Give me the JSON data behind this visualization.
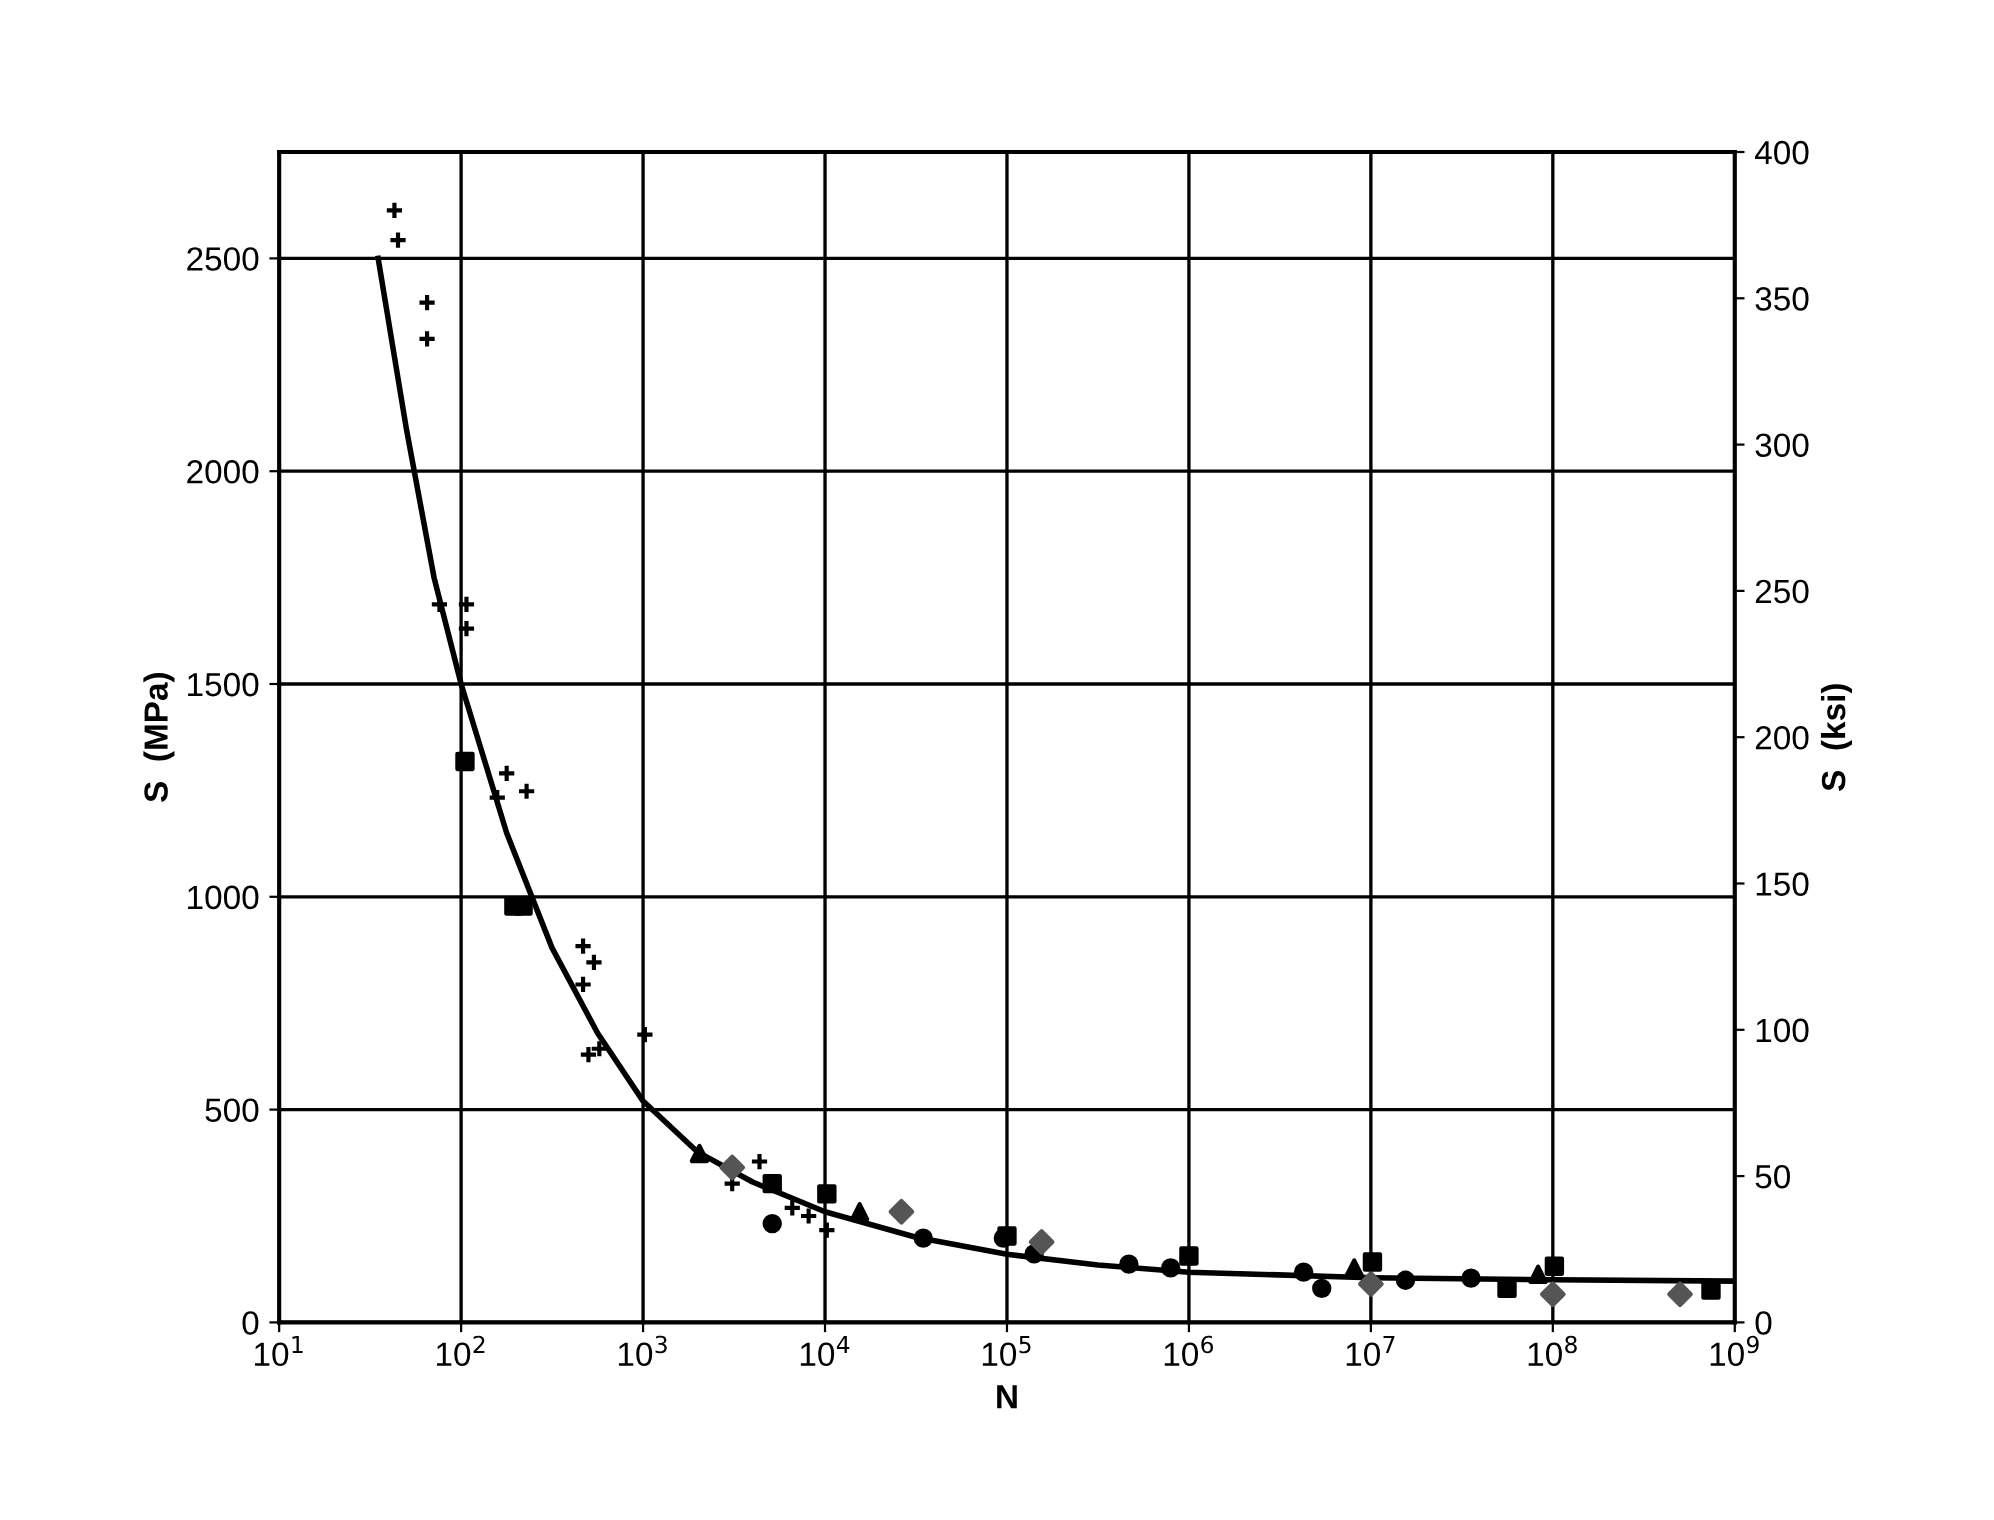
{
  "chart_data": {
    "type": "scatter",
    "xlabel": "N",
    "ylabel": "S  (MPa)",
    "y2label": "S  (ksi)",
    "log": "x",
    "grid": true,
    "xlim": [
      10,
      1000000000
    ],
    "xticks": [
      {
        "value": 10,
        "label": "10$^{1}$"
      },
      {
        "value": 100,
        "label": "10$^{2}$"
      },
      {
        "value": 1000,
        "label": "10$^{3}$"
      },
      {
        "value": 10000,
        "label": "10$^{4}$"
      },
      {
        "value": 100000,
        "label": "10$^{5}$"
      },
      {
        "value": 1000000,
        "label": "10$^{6}$"
      },
      {
        "value": 10000000,
        "label": "10$^{7}$"
      },
      {
        "value": 100000000,
        "label": "10$^{8}$"
      },
      {
        "value": 1000000000,
        "label": "10$^{9}$"
      }
    ],
    "ylim": [
      0,
      2750
    ],
    "yticks": [
      0,
      500,
      1000,
      1500,
      2000,
      2500
    ],
    "y2lim": [
      0,
      400
    ],
    "y2ticks": [
      0,
      50,
      100,
      150,
      200,
      250,
      300,
      350,
      400
    ],
    "series": [
      {
        "type": "line",
        "color": "#000000",
        "marker": "none",
        "x": [
          35,
          50,
          71,
          100,
          178,
          316,
          562,
          1000,
          2000,
          4000,
          10000,
          31600,
          100000,
          316000,
          1000000,
          10000000,
          100000000,
          1000000000
        ],
        "values": [
          2500,
          2100,
          1750,
          1500,
          1150,
          880,
          680,
          520,
          400,
          330,
          260,
          200,
          160,
          135,
          118,
          105,
          100,
          97
        ]
      },
      {
        "color": "#000000",
        "marker": "cross",
        "x": [
          43,
          45,
          65,
          65,
          107,
          76,
          107,
          229,
          178,
          158,
          468,
          537,
          468,
          501,
          575,
          1023,
          4365,
          3090,
          6607,
          8128,
          10233
        ],
        "values": [
          2613,
          2543,
          2396,
          2311,
          1687,
          1687,
          1630,
          1248,
          1290,
          1233,
          884,
          846,
          794,
          629,
          643,
          676,
          378,
          326,
          269,
          250,
          217
        ]
      },
      {
        "color": "#000000",
        "marker": "square",
        "x": [
          105,
          195,
          219,
          5128,
          10233,
          100000,
          1000000,
          10200000,
          56000000,
          102000000,
          740000000
        ],
        "values": [
          1318,
          978,
          978,
          326,
          302,
          203,
          156,
          142,
          80,
          132,
          76
        ]
      },
      {
        "color": "#000000",
        "marker": "circle",
        "x": [
          5128,
          34674,
          95500,
          141000,
          467700,
          794000,
          4270000,
          5370000,
          15500000,
          35500000
        ],
        "values": [
          232,
          198,
          198,
          161,
          137,
          128,
          118,
          80,
          99,
          104
        ]
      },
      {
        "color": "#000000",
        "marker": "triangle",
        "x": [
          2042,
          15500,
          8100000,
          83000000
        ],
        "values": [
          397,
          260,
          128,
          113
        ]
      },
      {
        "color": "#555555",
        "marker": "diamond",
        "x": [
          3090,
          26300,
          155000,
          500000000,
          10000000,
          100000000
        ],
        "values": [
          364,
          260,
          189,
          66,
          90,
          66
        ]
      }
    ]
  }
}
